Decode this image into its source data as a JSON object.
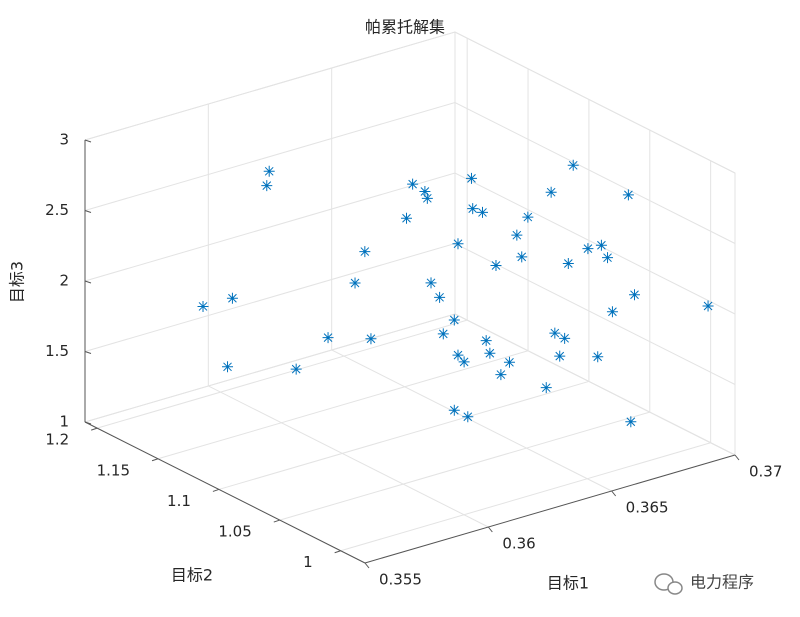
{
  "chart_data": {
    "type": "scatter3d",
    "title": "帕累托解集",
    "xlabel": "目标1",
    "ylabel": "目标2",
    "zlabel": "目标3",
    "xlim": [
      0.355,
      0.37
    ],
    "ylim": [
      0.98,
      1.21
    ],
    "zlim": [
      1,
      3
    ],
    "xticks": [
      0.355,
      0.36,
      0.365,
      0.37
    ],
    "yticks": [
      1,
      1.05,
      1.1,
      1.15,
      1.2
    ],
    "zticks": [
      1,
      1.5,
      2,
      2.5,
      3
    ],
    "grid": true,
    "series": [
      {
        "color": "#0072bd",
        "x": [
          0.36,
          0.36,
          0.3586,
          0.3592,
          0.3591,
          0.3606,
          0.3613,
          0.3619,
          0.3621,
          0.3622,
          0.363,
          0.3631,
          0.3634,
          0.3634,
          0.3635,
          0.3637,
          0.3638,
          0.364,
          0.3641,
          0.3642,
          0.3641,
          0.3644,
          0.3644,
          0.3646,
          0.3647,
          0.3648,
          0.3649,
          0.365,
          0.3652,
          0.3654,
          0.3655,
          0.3656,
          0.3661,
          0.3662,
          0.3663,
          0.3664,
          0.3665,
          0.3666,
          0.3669,
          0.3672,
          0.3671,
          0.3673,
          0.3674,
          0.3678,
          0.3679,
          0.3695,
          0.366,
          0.364,
          0.3643,
          0.3678
        ],
        "y": [
          1.16,
          1.162,
          1.186,
          1.174,
          1.176,
          1.15,
          1.138,
          1.128,
          1.124,
          1.121,
          1.108,
          1.105,
          1.101,
          1.099,
          1.098,
          1.095,
          1.094,
          1.089,
          1.088,
          1.085,
          1.088,
          1.083,
          1.082,
          1.078,
          1.077,
          1.076,
          1.073,
          1.071,
          1.068,
          1.066,
          1.064,
          1.061,
          1.052,
          1.051,
          1.049,
          1.047,
          1.046,
          1.044,
          1.038,
          1.033,
          1.034,
          1.03,
          1.028,
          1.023,
          1.02,
          0.992,
          1.054,
          1.089,
          1.084,
          1.021
        ],
        "z": [
          2.74,
          2.63,
          1.74,
          1.82,
          1.33,
          1.35,
          1.59,
          1.99,
          2.22,
          1.61,
          2.48,
          2.73,
          2.68,
          2.64,
          2.04,
          1.94,
          1.68,
          1.79,
          1.54,
          1.5,
          2.33,
          2.8,
          2.59,
          2.57,
          1.66,
          1.57,
          2.2,
          1.43,
          1.52,
          2.42,
          2.27,
          2.56,
          2.75,
          1.75,
          1.59,
          1.72,
          2.25,
          2.95,
          2.37,
          2.4,
          1.61,
          2.32,
          1.94,
          2.77,
          2.07,
          2.03,
          1.36,
          1.15,
          1.11,
          1.17
        ]
      }
    ]
  },
  "watermark": {
    "text": "电力程序"
  }
}
